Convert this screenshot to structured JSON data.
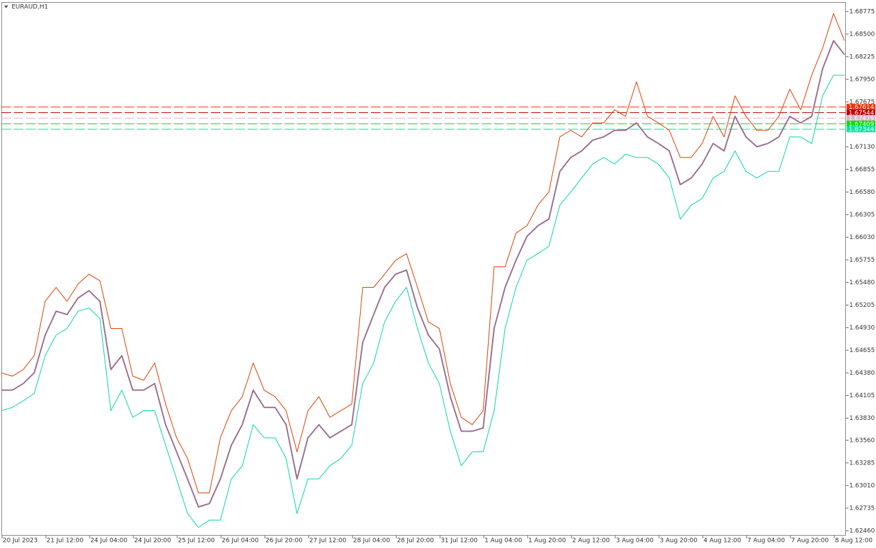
{
  "chart_data": {
    "type": "line",
    "title": "EURAUD,H1",
    "categories": [
      "20 Jul 2023",
      null,
      null,
      null,
      "21 Jul 12:00",
      null,
      null,
      null,
      "24 Jul 04:00",
      null,
      null,
      null,
      "24 Jul 20:00",
      null,
      null,
      null,
      "25 Jul 12:00",
      null,
      null,
      null,
      "26 Jul 04:00",
      null,
      null,
      null,
      "26 Jul 20:00",
      null,
      null,
      null,
      "27 Jul 12:00",
      null,
      null,
      null,
      "28 Jul 04:00",
      null,
      null,
      null,
      "28 Jul 20:00",
      null,
      null,
      null,
      "31 Jul 12:00",
      null,
      null,
      null,
      "1 Aug 04:00",
      null,
      null,
      null,
      "1 Aug 20:00",
      null,
      null,
      null,
      "2 Aug 12:00",
      null,
      null,
      null,
      "3 Aug 04:00",
      null,
      null,
      null,
      "3 Aug 20:00",
      null,
      null,
      null,
      "4 Aug 12:00",
      null,
      null,
      null,
      "7 Aug 04:00",
      null,
      null,
      null,
      "7 Aug 20:00",
      null,
      null,
      null,
      "8 Aug 12:00",
      null
    ],
    "series": [
      {
        "color": "#e03c00",
        "values": [
          1.6438,
          1.6434,
          1.6442,
          1.6459,
          1.6525,
          1.6542,
          1.6525,
          1.6546,
          1.6558,
          1.655,
          1.6492,
          1.6492,
          1.6434,
          1.6429,
          1.645,
          1.64,
          1.6359,
          1.6334,
          1.6292,
          1.6292,
          1.6359,
          1.6392,
          1.6409,
          1.645,
          1.6417,
          1.6409,
          1.6392,
          1.6342,
          1.6392,
          1.6409,
          1.6384,
          1.6392,
          1.64,
          1.6542,
          1.6542,
          1.6558,
          1.6575,
          1.6583,
          1.6542,
          1.65,
          1.6492,
          1.6425,
          1.6384,
          1.6375,
          1.6392,
          1.6567,
          1.6567,
          1.6608,
          1.6617,
          1.6642,
          1.6658,
          1.6725,
          1.6733,
          1.6725,
          1.6742,
          1.6742,
          1.6758,
          1.675,
          1.6792,
          1.675,
          1.6742,
          1.6733,
          1.67,
          1.67,
          1.6717,
          1.675,
          1.6725,
          1.6775,
          1.675,
          1.6733,
          1.6733,
          1.675,
          1.6783,
          1.6758,
          1.68,
          1.6833,
          1.6875,
          1.6842
        ]
      },
      {
        "color": "#9a7090",
        "values": [
          1.6417,
          1.6417,
          1.6425,
          1.6438,
          1.6484,
          1.6513,
          1.6509,
          1.6529,
          1.6538,
          1.6525,
          1.6442,
          1.6459,
          1.6417,
          1.6417,
          1.6425,
          1.6375,
          1.6342,
          1.6309,
          1.6275,
          1.6279,
          1.6309,
          1.635,
          1.6375,
          1.6417,
          1.6396,
          1.6396,
          1.6375,
          1.6309,
          1.6359,
          1.6375,
          1.6359,
          1.6367,
          1.6375,
          1.6475,
          1.6509,
          1.6542,
          1.6558,
          1.6563,
          1.6517,
          1.6484,
          1.6467,
          1.6409,
          1.6367,
          1.6367,
          1.6371,
          1.6492,
          1.6542,
          1.6575,
          1.6604,
          1.6617,
          1.6625,
          1.6683,
          1.67,
          1.6708,
          1.6721,
          1.6725,
          1.6733,
          1.6733,
          1.6742,
          1.6725,
          1.6717,
          1.6708,
          1.6667,
          1.6675,
          1.6692,
          1.6717,
          1.6708,
          1.675,
          1.6725,
          1.6713,
          1.6717,
          1.6725,
          1.675,
          1.6742,
          1.675,
          1.6808,
          1.6842,
          1.6825
        ]
      },
      {
        "color": "#00d8a0",
        "values": [
          1.6392,
          1.6396,
          1.6404,
          1.6413,
          1.6459,
          1.6484,
          1.6492,
          1.6513,
          1.6517,
          1.6504,
          1.6392,
          1.6417,
          1.6384,
          1.6392,
          1.6392,
          1.635,
          1.6309,
          1.6267,
          1.625,
          1.6259,
          1.6259,
          1.6309,
          1.6325,
          1.6375,
          1.6359,
          1.6359,
          1.6334,
          1.6267,
          1.6309,
          1.6309,
          1.6325,
          1.6334,
          1.635,
          1.6425,
          1.645,
          1.65,
          1.6525,
          1.6542,
          1.6492,
          1.645,
          1.6425,
          1.6367,
          1.6325,
          1.6342,
          1.6342,
          1.6392,
          1.6492,
          1.6542,
          1.6575,
          1.6583,
          1.6592,
          1.6642,
          1.6658,
          1.6675,
          1.6692,
          1.67,
          1.6692,
          1.6704,
          1.67,
          1.67,
          1.6692,
          1.6675,
          1.6625,
          1.6642,
          1.665,
          1.6675,
          1.6683,
          1.6708,
          1.6683,
          1.6675,
          1.6683,
          1.6683,
          1.6725,
          1.6725,
          1.6717,
          1.6775,
          1.68,
          1.68
        ]
      }
    ],
    "levels": [
      {
        "value": 1.67614,
        "color": "#ff2a00"
      },
      {
        "value": 1.67544,
        "color": "#c00000"
      },
      {
        "value": 1.67479,
        "color": "#d8b4c8"
      },
      {
        "value": 1.67409,
        "color": "#00e000"
      },
      {
        "value": 1.67344,
        "color": "#00e8a0"
      }
    ],
    "ylim": [
      1.624,
      1.6889
    ],
    "yticks": [
      {
        "value": 1.68775,
        "label": "1.68775"
      },
      {
        "value": 1.685,
        "label": "1.68500"
      },
      {
        "value": 1.68225,
        "label": "1.68225"
      },
      {
        "value": 1.6795,
        "label": "1.67950"
      },
      {
        "value": 1.67675,
        "label": "1.67675"
      },
      {
        "value": 1.6713,
        "label": "1.67130"
      },
      {
        "value": 1.66855,
        "label": "1.66855"
      },
      {
        "value": 1.6658,
        "label": "1.66580"
      },
      {
        "value": 1.66305,
        "label": "1.66305"
      },
      {
        "value": 1.6603,
        "label": "1.66030"
      },
      {
        "value": 1.65755,
        "label": "1.65755"
      },
      {
        "value": 1.6548,
        "label": "1.65480"
      },
      {
        "value": 1.65205,
        "label": "1.65205"
      },
      {
        "value": 1.6493,
        "label": "1.64930"
      },
      {
        "value": 1.64655,
        "label": "1.64655"
      },
      {
        "value": 1.6438,
        "label": "1.64380"
      },
      {
        "value": 1.64105,
        "label": "1.64105"
      },
      {
        "value": 1.6383,
        "label": "1.63830"
      },
      {
        "value": 1.6356,
        "label": "1.63560"
      },
      {
        "value": 1.63285,
        "label": "1.63285"
      },
      {
        "value": 1.6301,
        "label": "1.63010"
      },
      {
        "value": 1.62735,
        "label": "1.62735"
      },
      {
        "value": 1.6246,
        "label": "1.62460"
      }
    ],
    "grid": false
  }
}
